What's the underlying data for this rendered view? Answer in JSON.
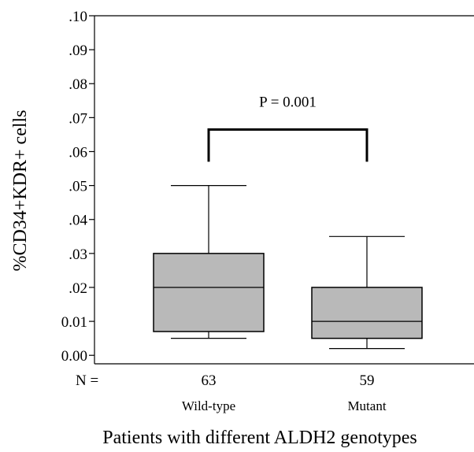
{
  "chart_data": {
    "type": "box",
    "ylabel": "%CD34+KDR+ cells",
    "xlabel": "Patients with different ALDH2 genotypes",
    "ylim": [
      0,
      0.1
    ],
    "yticks": [
      {
        "value": 0.1,
        "label": ".10"
      },
      {
        "value": 0.09,
        "label": ".09"
      },
      {
        "value": 0.08,
        "label": ".08"
      },
      {
        "value": 0.07,
        "label": ".07"
      },
      {
        "value": 0.06,
        "label": ".06"
      },
      {
        "value": 0.05,
        "label": ".05"
      },
      {
        "value": 0.04,
        "label": ".04"
      },
      {
        "value": 0.03,
        "label": ".03"
      },
      {
        "value": 0.02,
        "label": ".02"
      },
      {
        "value": 0.01,
        "label": "0.01"
      },
      {
        "value": 0.0,
        "label": "0.00"
      }
    ],
    "n_prefix": "N =",
    "groups": [
      {
        "category": "Wild-type",
        "n": "63",
        "whisker_low": 0.005,
        "q1": 0.007,
        "median": 0.02,
        "q3": 0.03,
        "whisker_high": 0.05
      },
      {
        "category": "Mutant",
        "n": "59",
        "whisker_low": 0.002,
        "q1": 0.005,
        "median": 0.01,
        "q3": 0.02,
        "whisker_high": 0.035
      }
    ],
    "box_color": "#b9b9b9",
    "annotation": {
      "text": "P = 0.001",
      "bracket_level": 0.0665,
      "bracket_drop": 0.0095
    }
  }
}
